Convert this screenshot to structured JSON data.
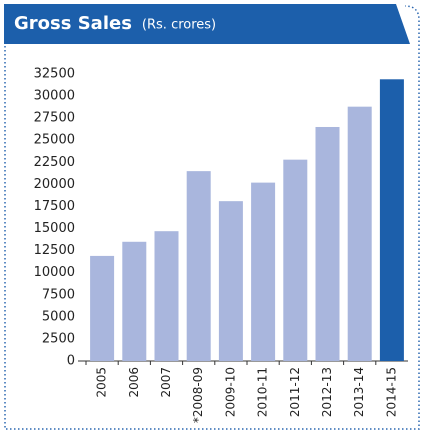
{
  "chart_data": {
    "type": "bar",
    "title": "Gross Sales",
    "subtitle": "(Rs. crores)",
    "categories": [
      "2005",
      "2006",
      "2007",
      "*2008-09",
      "2009-10",
      "2010-11",
      "2011-12",
      "2012-13",
      "2013-14",
      "2014-15"
    ],
    "values": [
      11900,
      13500,
      14700,
      21500,
      18100,
      20200,
      22800,
      26500,
      28800,
      31900
    ],
    "colors": [
      "#a9b6dd",
      "#a9b6dd",
      "#a9b6dd",
      "#a9b6dd",
      "#a9b6dd",
      "#a9b6dd",
      "#a9b6dd",
      "#a9b6dd",
      "#a9b6dd",
      "#1c5fab"
    ],
    "ylim": [
      0,
      32500
    ],
    "yticks": [
      0,
      2500,
      5000,
      7500,
      10000,
      12500,
      15000,
      17500,
      20000,
      22500,
      25000,
      27500,
      30000,
      32500
    ],
    "grid": false
  }
}
